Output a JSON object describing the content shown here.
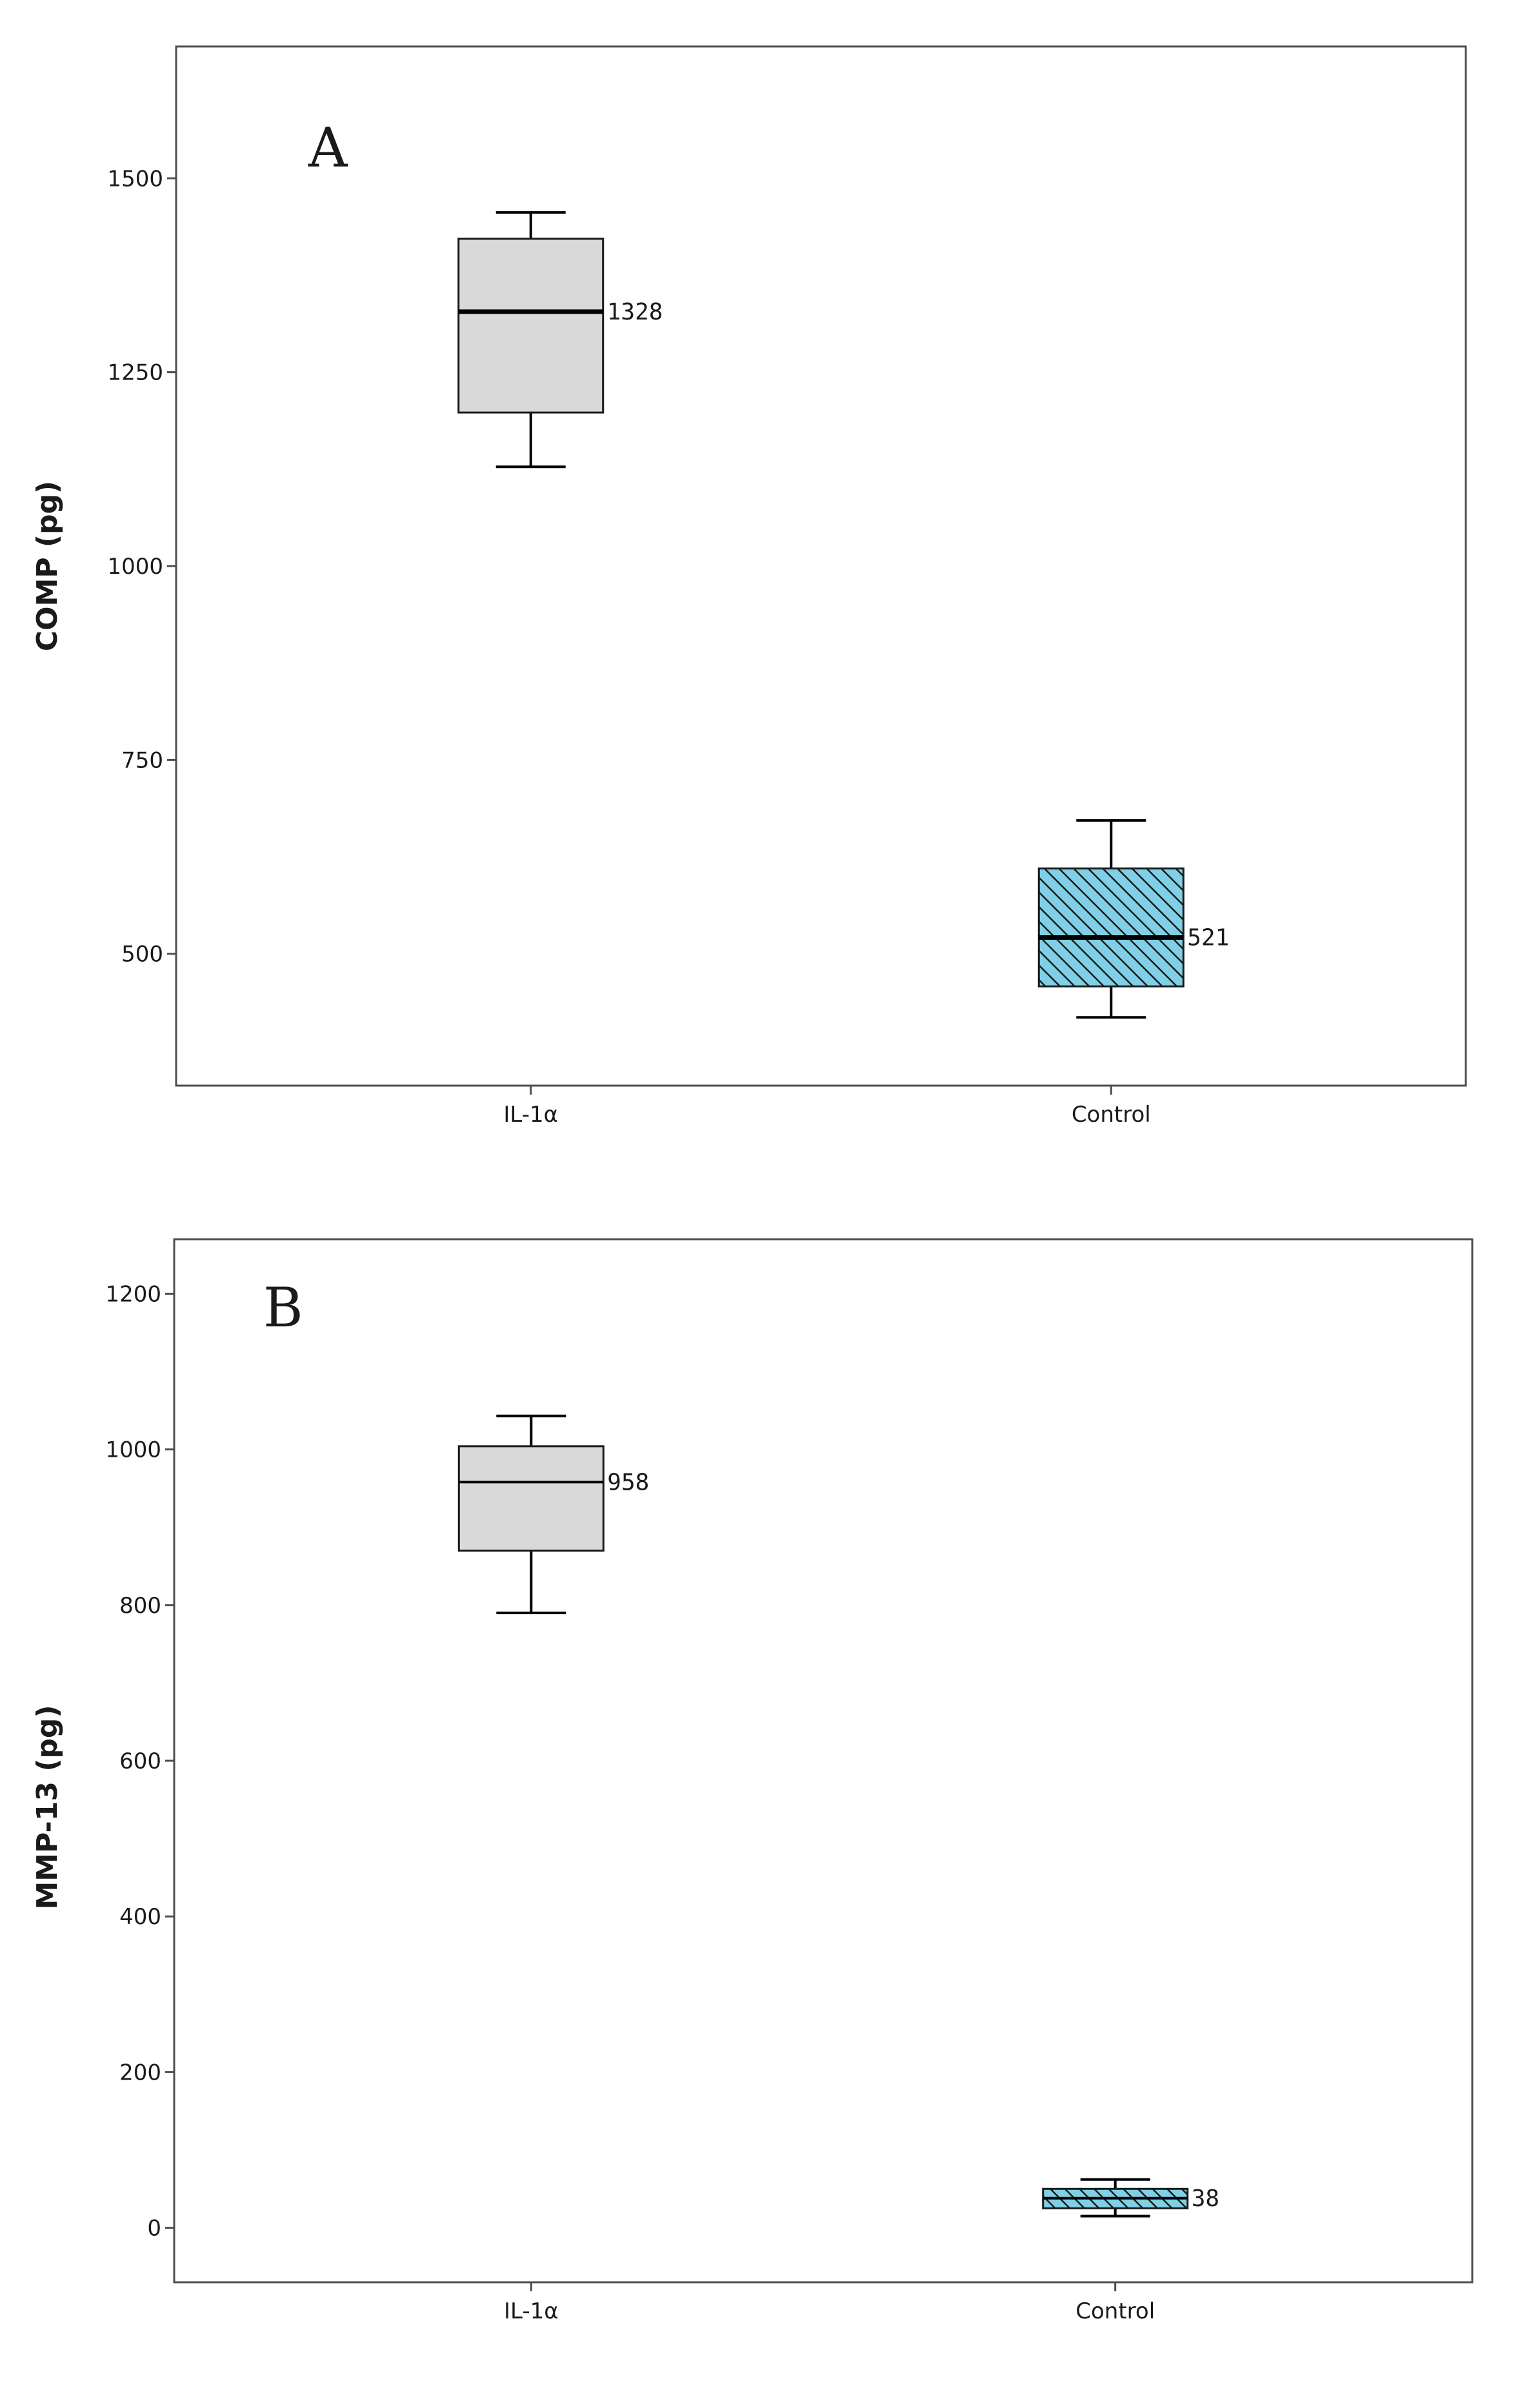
{
  "chart_data": [
    {
      "type": "boxplot",
      "panel_label": "A",
      "title": "",
      "xlabel": "",
      "ylabel": "COMP (pg)",
      "ylim": [
        330,
        1670
      ],
      "yticks": [
        500,
        750,
        1000,
        1250,
        1500
      ],
      "yticks_text": [
        "500",
        "750",
        "1000",
        "1250",
        "1500"
      ],
      "grid": false,
      "categories": [
        "IL-1α",
        "Control"
      ],
      "series": [
        {
          "name": "IL-1α",
          "fill": "#d9d9d9",
          "pattern": "none",
          "min": 1128,
          "q1": 1198,
          "median": 1328,
          "q3": 1422,
          "max": 1456,
          "median_label": "1328"
        },
        {
          "name": "Control",
          "fill": "#7fd0e6",
          "pattern": "diagonal-hatch",
          "min": 418,
          "q1": 458,
          "median": 521,
          "q3": 610,
          "max": 672,
          "median_label": "521"
        }
      ]
    },
    {
      "type": "boxplot",
      "panel_label": "B",
      "title": "",
      "xlabel": "",
      "ylabel": "MMP-13 (pg)",
      "ylim": [
        -70,
        1270
      ],
      "yticks": [
        0,
        200,
        400,
        600,
        800,
        1000,
        1200
      ],
      "yticks_text": [
        "0",
        "200",
        "400",
        "600",
        "800",
        "1000",
        "1200"
      ],
      "grid": false,
      "categories": [
        "IL-1α",
        "Control"
      ],
      "series": [
        {
          "name": "IL-1α",
          "fill": "#d9d9d9",
          "pattern": "none",
          "min": 790,
          "q1": 870,
          "median": 958,
          "q3": 1004,
          "max": 1043,
          "median_label": "958"
        },
        {
          "name": "Control",
          "fill": "#7fd0e6",
          "pattern": "diagonal-hatch",
          "min": 15,
          "q1": 25,
          "median": 38,
          "q3": 50,
          "max": 62,
          "median_label": "38"
        }
      ]
    }
  ],
  "colors": {
    "axis": "#4d4d4d",
    "whisker": "#000000",
    "il1_fill": "#d9d9d9",
    "control_fill": "#7fd0e6",
    "hatch": "#1a1a1a"
  }
}
